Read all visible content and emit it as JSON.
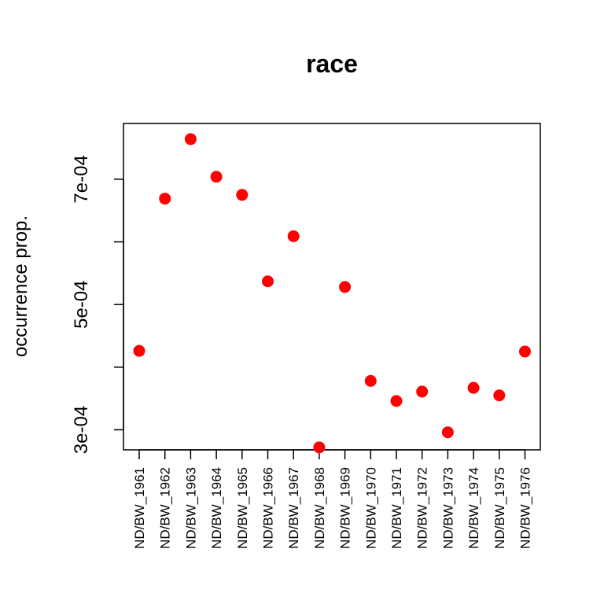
{
  "chart_data": {
    "type": "scatter",
    "title": "race",
    "xlabel": "",
    "ylabel": "occurrence prop.",
    "categories": [
      "ND/BW_1961",
      "ND/BW_1962",
      "ND/BW_1963",
      "ND/BW_1964",
      "ND/BW_1965",
      "ND/BW_1966",
      "ND/BW_1967",
      "ND/BW_1968",
      "ND/BW_1969",
      "ND/BW_1970",
      "ND/BW_1971",
      "ND/BW_1972",
      "ND/BW_1973",
      "ND/BW_1974",
      "ND/BW_1975",
      "ND/BW_1976"
    ],
    "values": [
      0.000426,
      0.000669,
      0.000764,
      0.000704,
      0.000675,
      0.000537,
      0.000609,
      0.000272,
      0.000528,
      0.000378,
      0.000346,
      0.000361,
      0.000296,
      0.000367,
      0.000355,
      0.000425
    ],
    "ylim": [
      0.000268,
      0.000789
    ],
    "yticks": [
      0.0003,
      0.0004,
      0.0005,
      0.0006,
      0.0007
    ],
    "ytick_labels": [
      "3e-04",
      "",
      "5e-04",
      "",
      "7e-04"
    ],
    "point_color": "#ff0000",
    "grid": false,
    "legend": "none"
  }
}
